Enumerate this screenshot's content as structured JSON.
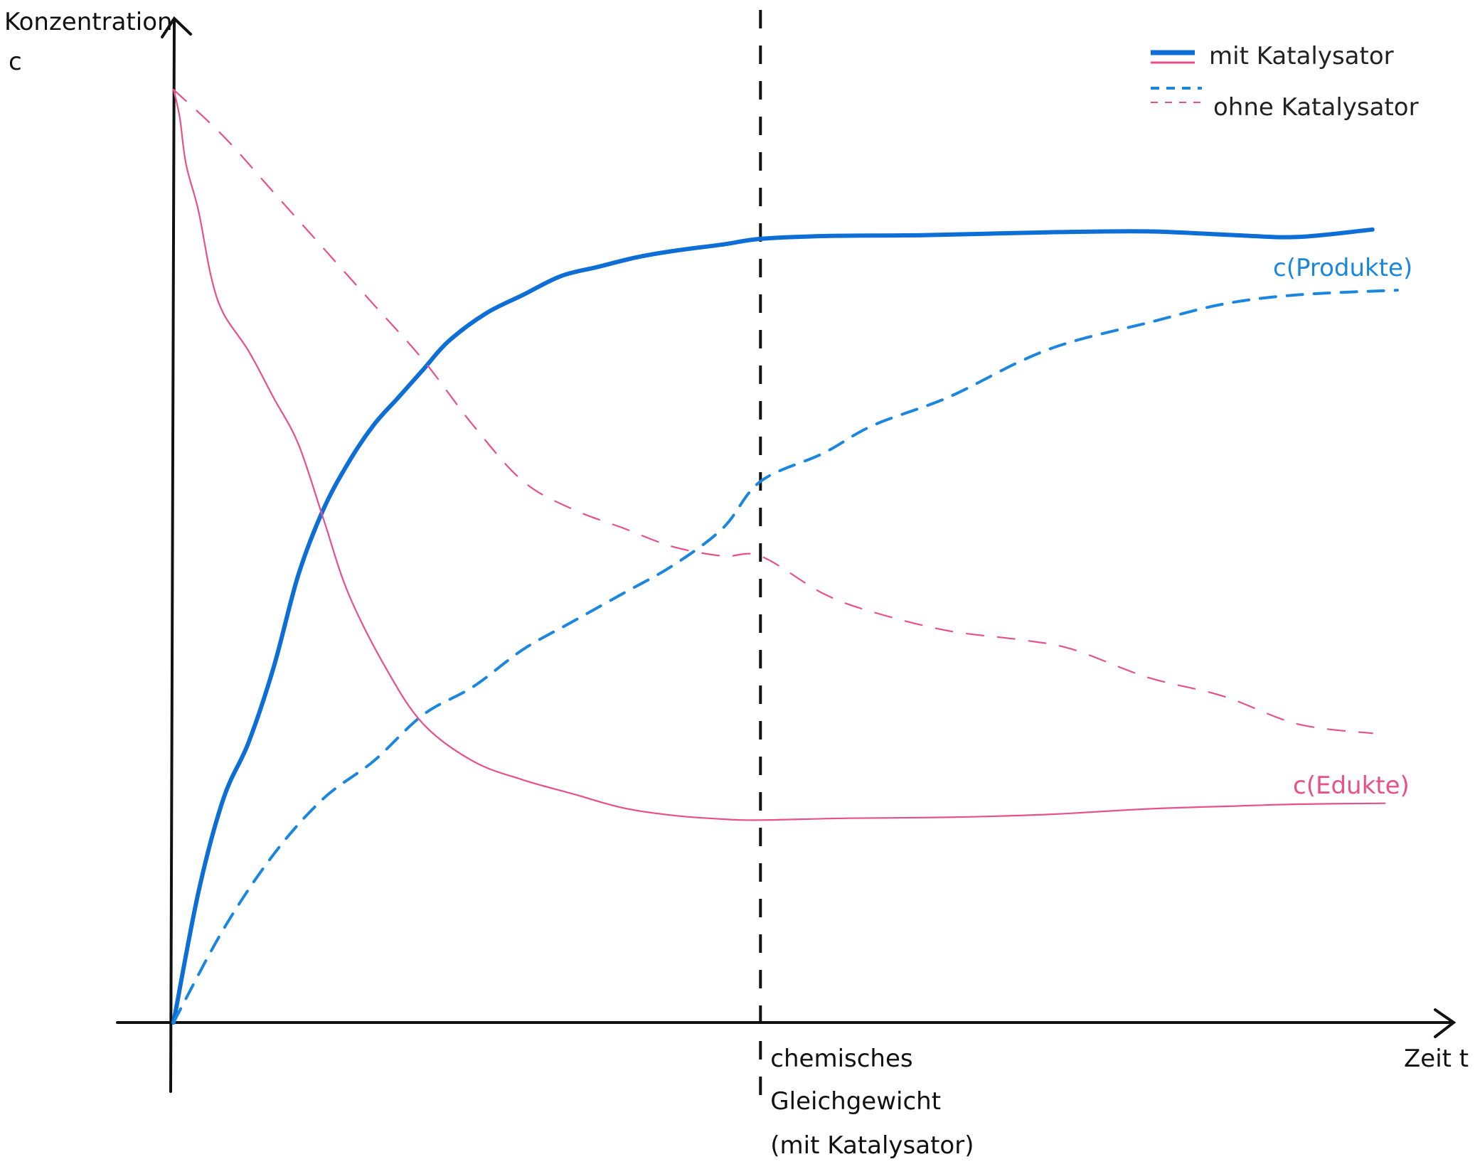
{
  "chart_data": {
    "type": "line",
    "ylabel": "Konzentration",
    "ylabel_symbol": "c",
    "xlabel": "Zeit t",
    "xlim": [
      0,
      100
    ],
    "ylim": [
      0,
      100
    ],
    "grid": false,
    "legend_position": "top-right",
    "legend": [
      {
        "label": "mit Katalysator",
        "style": "solid",
        "colors": [
          "#0d6fd6",
          "#e8508a"
        ]
      },
      {
        "label": "ohne Katalysator",
        "style": "dashed",
        "colors": [
          "#1a86e0",
          "#e8508a"
        ]
      }
    ],
    "equilibrium_marker": {
      "x": 47,
      "label_lines": [
        "chemisches",
        "Gleichgewicht",
        "(mit Katalysator)"
      ]
    },
    "curve_labels": {
      "products": "c(Produkte)",
      "educts": "c(Edukte)"
    },
    "series": [
      {
        "group": "products",
        "catalyst": true,
        "color": "#0d6fd6",
        "style": "solid",
        "x": [
          0,
          2,
          4,
          6,
          8,
          10,
          12,
          14,
          16,
          18,
          20,
          22,
          25,
          28,
          31,
          34,
          37,
          40,
          44,
          47,
          52,
          60,
          70,
          78,
          85,
          90,
          96
        ],
        "y": [
          0,
          14,
          24,
          30,
          38,
          48,
          55,
          60,
          64,
          67,
          70,
          73,
          76,
          78,
          80,
          81,
          82,
          82.7,
          83.4,
          84,
          84.3,
          84.4,
          84.7,
          84.8,
          84.4,
          84.2,
          85
        ]
      },
      {
        "group": "products",
        "catalyst": false,
        "color": "#1a86e0",
        "style": "dashed",
        "x": [
          0,
          4,
          8,
          12,
          16,
          20,
          24,
          28,
          32,
          36,
          40,
          44,
          47,
          52,
          56,
          62,
          68,
          72,
          78,
          84,
          90,
          98
        ],
        "y": [
          0,
          10,
          18,
          24,
          28,
          33,
          36,
          40,
          43,
          46,
          49,
          53,
          58,
          61,
          64,
          67,
          71,
          73,
          75,
          77,
          78,
          78.5
        ]
      },
      {
        "group": "educts",
        "catalyst": true,
        "color": "#e8508a",
        "style": "solid",
        "x": [
          0,
          0.5,
          1,
          2,
          3,
          4,
          6,
          8,
          10,
          12,
          14,
          17,
          20,
          24,
          28,
          32,
          36,
          40,
          44,
          47,
          54,
          62,
          70,
          78,
          85,
          90,
          97
        ],
        "y": [
          100,
          97,
          92,
          87,
          80,
          76,
          72,
          67,
          62,
          54,
          46,
          38,
          32,
          28,
          26,
          24.5,
          23,
          22.2,
          21.8,
          21.7,
          21.9,
          22,
          22.3,
          22.9,
          23.2,
          23.4,
          23.5
        ]
      },
      {
        "group": "educts",
        "catalyst": false,
        "color": "#e8508a",
        "style": "dashed",
        "x": [
          0,
          4,
          8,
          12,
          16,
          20,
          24,
          28,
          32,
          36,
          40,
          44,
          47,
          52,
          56,
          62,
          68,
          72,
          78,
          84,
          90,
          96
        ],
        "y": [
          100,
          95,
          89,
          83,
          77,
          71,
          64,
          58,
          55,
          53,
          51,
          50,
          50,
          46,
          44,
          42,
          41,
          40,
          37,
          35,
          32,
          31
        ]
      }
    ]
  }
}
